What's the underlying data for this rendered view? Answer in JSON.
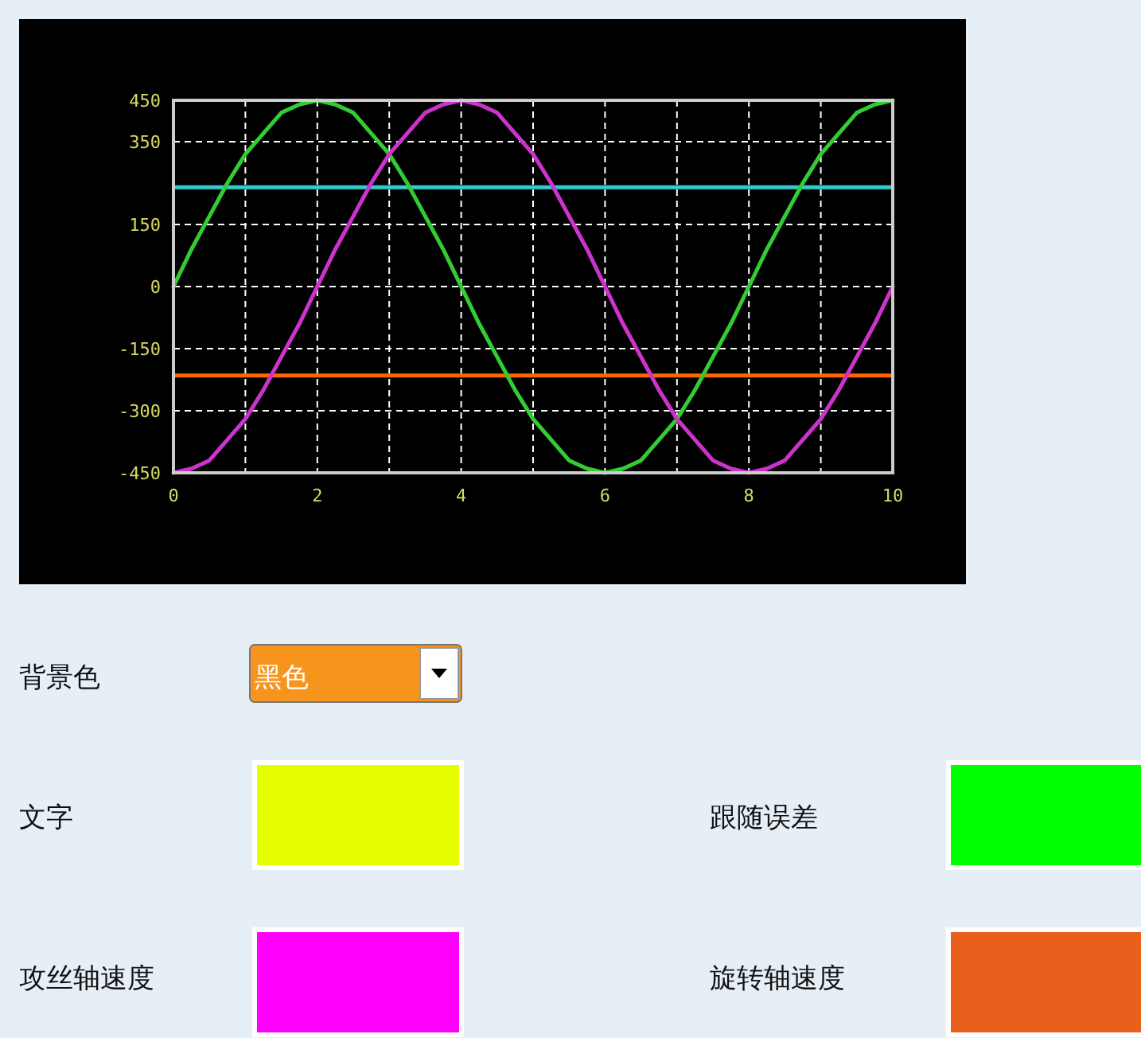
{
  "chart_data": [
    {
      "type": "line",
      "x": [
        0,
        0.25,
        0.5,
        0.75,
        1,
        1.25,
        1.5,
        1.75,
        2,
        2.25,
        2.5,
        2.75,
        3,
        3.25,
        3.5,
        3.75,
        4,
        4.25,
        4.5,
        4.75,
        5,
        5.25,
        5.5,
        5.75,
        6,
        6.25,
        6.5,
        6.75,
        7,
        7.25,
        7.5,
        7.75,
        8,
        8.25,
        8.5,
        8.75,
        9,
        9.25,
        9.5,
        9.75,
        10
      ],
      "series": [
        {
          "color": "#33cc33",
          "values": [
            0,
            90,
            170,
            250,
            320,
            370,
            420,
            440,
            450,
            440,
            420,
            370,
            320,
            250,
            170,
            90,
            0,
            -90,
            -170,
            -250,
            -320,
            -370,
            -420,
            -440,
            -450,
            -440,
            -420,
            -370,
            -320,
            -250,
            -170,
            -90,
            0,
            90,
            170,
            250,
            320,
            370,
            420,
            440,
            450
          ]
        },
        {
          "color": "#cc33cc",
          "values": [
            -450,
            -440,
            -420,
            -370,
            -320,
            -250,
            -170,
            -90,
            0,
            90,
            170,
            250,
            320,
            370,
            420,
            440,
            450,
            440,
            420,
            370,
            320,
            250,
            170,
            90,
            0,
            -90,
            -170,
            -250,
            -320,
            -370,
            -420,
            -440,
            -450,
            -440,
            -420,
            -370,
            -320,
            -250,
            -170,
            -90,
            0
          ]
        }
      ],
      "xlim": [
        0,
        10
      ],
      "xticks": [
        0,
        {
          "value": 1,
          "label": null
        },
        2,
        {
          "value": 3,
          "label": null
        },
        4,
        {
          "value": 5,
          "label": null
        },
        6,
        {
          "value": 7,
          "label": null
        },
        8,
        {
          "value": 9,
          "label": null
        },
        10
      ],
      "ylim": [
        -450,
        450
      ],
      "yticks": [
        450,
        350,
        150,
        0,
        -150,
        -300,
        -450
      ],
      "grid": true,
      "ref_lines": [
        {
          "axis": "y",
          "value": 240,
          "color": "#33cccc"
        },
        {
          "axis": "y",
          "value": -215,
          "color": "#ff6600"
        }
      ]
    },
    {
      "type": "other",
      "annotations": [
        "背景色",
        "黑色",
        "文字",
        "跟随误差",
        "攻丝轴速度",
        "旋转轴速度"
      ]
    }
  ]
}
